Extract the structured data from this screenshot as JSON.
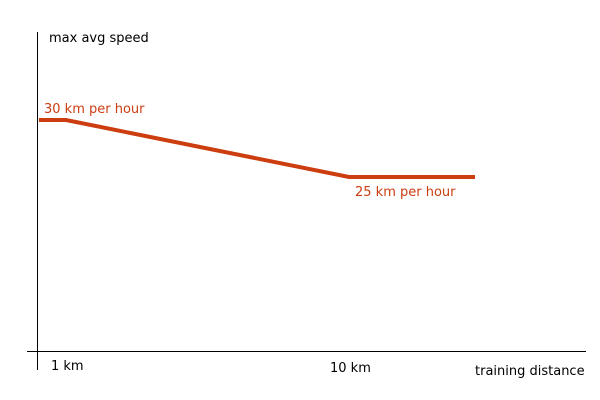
{
  "chart_data": {
    "type": "line",
    "ylabel": "max avg speed",
    "xlabel": "training distance",
    "x_ticks": [
      "1 km",
      "10 km"
    ],
    "series": [
      {
        "x": [
          0,
          1,
          10,
          14
        ],
        "y": [
          30,
          30,
          25,
          25
        ],
        "color": "#cc3e10"
      }
    ],
    "annotations": [
      {
        "text": "30 km per hour",
        "x": 1,
        "y": 30
      },
      {
        "text": "25 km per hour",
        "x": 10,
        "y": 25
      }
    ],
    "grid": false,
    "legend": "none"
  }
}
